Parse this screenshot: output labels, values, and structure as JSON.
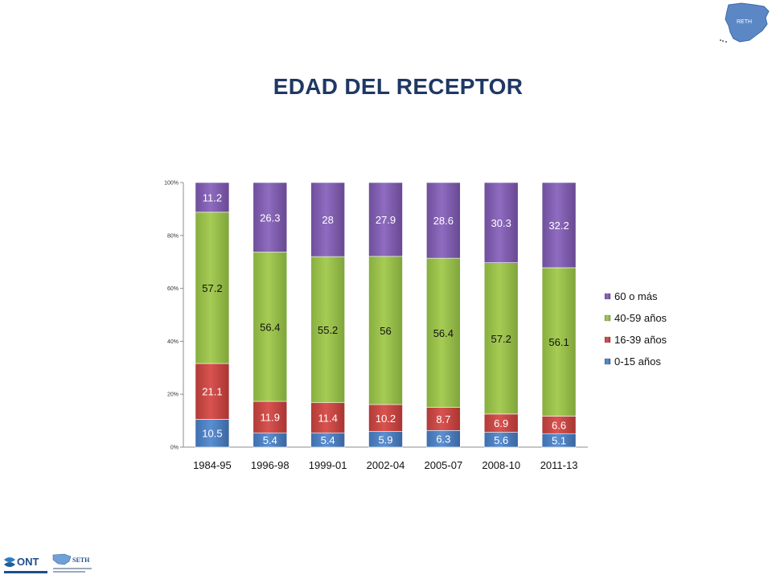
{
  "slide": {
    "title": "EDAD DEL RECEPTOR"
  },
  "logos": {
    "top_right_map": "RETH",
    "ont": "ONT",
    "seth": "SETH",
    "seth_subtitle": "Sociedad Española de Trasplante Hepático"
  },
  "chart_data": {
    "type": "bar",
    "stacked": true,
    "normalized_100": true,
    "categories": [
      "1984-95",
      "1996-98",
      "1999-01",
      "2002-04",
      "2005-07",
      "2008-10",
      "2011-13"
    ],
    "series": [
      {
        "name": "0-15 años",
        "color": "#4A7EBB",
        "values": [
          10.5,
          5.4,
          5.4,
          5.9,
          6.3,
          5.6,
          5.1
        ]
      },
      {
        "name": "16-39 años",
        "color": "#C0504D",
        "values": [
          21.1,
          11.9,
          11.4,
          10.2,
          8.7,
          6.9,
          6.6
        ]
      },
      {
        "name": "40-59 años",
        "color": "#9BBB59",
        "values": [
          57.2,
          56.4,
          55.2,
          56,
          56.4,
          57.2,
          56.1
        ]
      },
      {
        "name": "60 o más",
        "color": "#8064A2",
        "values": [
          11.2,
          26.3,
          28,
          27.9,
          28.6,
          30.3,
          32.2
        ]
      }
    ],
    "data_labels": [
      [
        "10.5",
        "5.4",
        "5.4",
        "5.9",
        "6.3",
        "5.6",
        "5.1"
      ],
      [
        "21.1",
        "11.9",
        "11.4",
        "10.2",
        "8.7",
        "6.9",
        "6.6"
      ],
      [
        "57.2",
        "56.4",
        "55.2",
        "56",
        "56.4",
        "57.2",
        "56.1"
      ],
      [
        "11.2",
        "26.3",
        "28",
        "27.9",
        "28.6",
        "30.3",
        "32.2"
      ]
    ],
    "y_ticks": [
      "0%",
      "20%",
      "40%",
      "60%",
      "80%",
      "100%"
    ],
    "ylim": [
      0,
      100
    ],
    "grid": false,
    "legend": "right",
    "legend_order": [
      "60 o más",
      "40-59 años",
      "16-39 años",
      "0-15 años"
    ]
  }
}
